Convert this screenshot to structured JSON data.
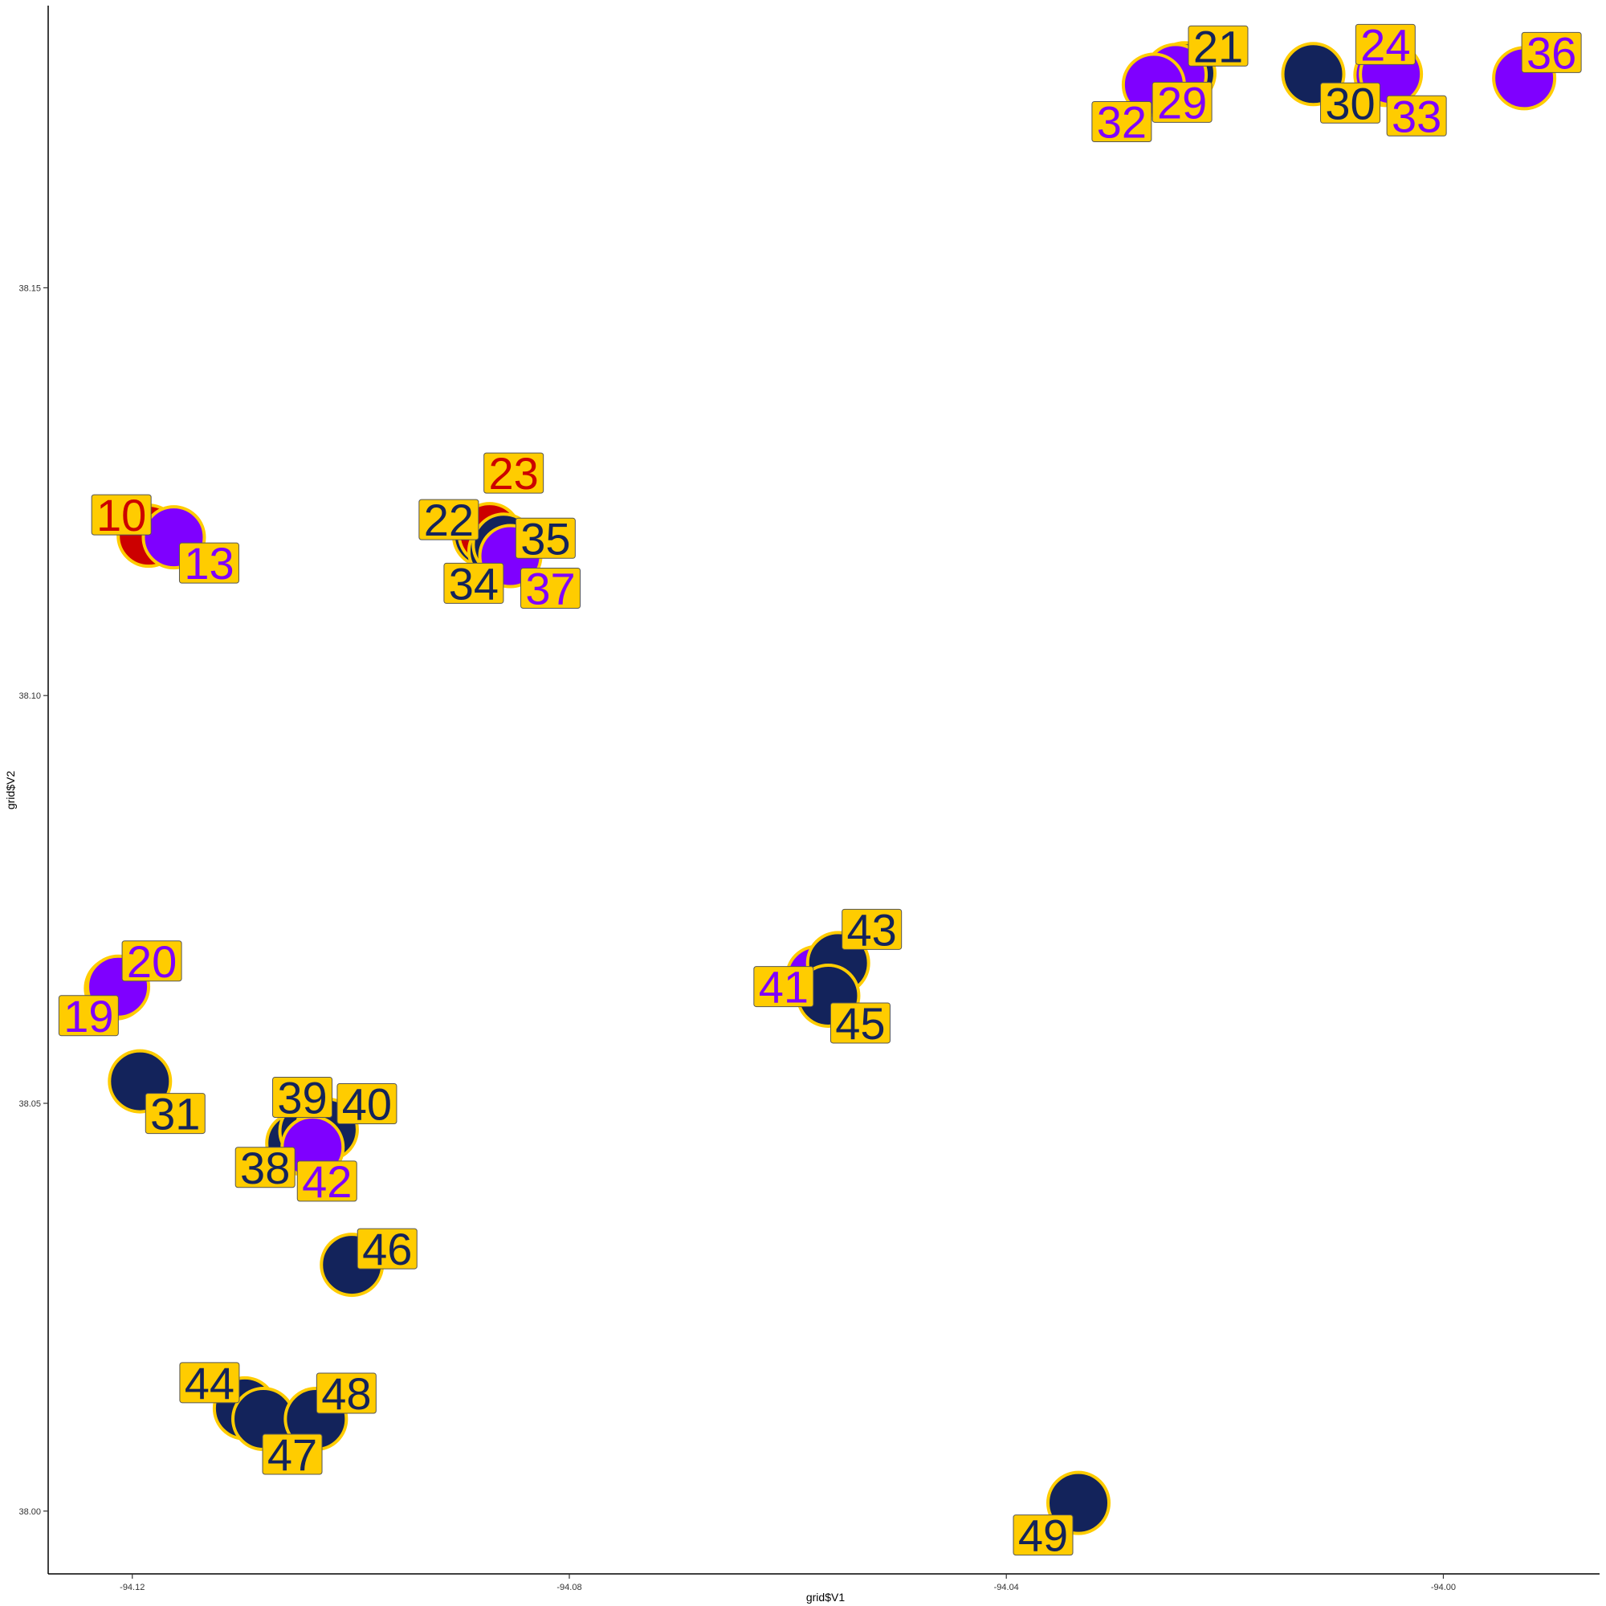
{
  "chart_data": {
    "type": "scatter",
    "title": "",
    "xlabel": "grid$V1",
    "ylabel": "grid$V2",
    "xlim": [
      -94.1277,
      -93.9857
    ],
    "ylim": [
      37.9923,
      38.1846
    ],
    "x_ticks": [
      -94.12,
      -94.08,
      -94.04,
      -94.0
    ],
    "x_tick_labels": [
      "-94.12",
      "-94.08",
      "-94.04",
      "-94.00"
    ],
    "y_ticks": [
      38.0,
      38.05,
      38.1,
      38.15
    ],
    "y_tick_labels": [
      "38.00",
      "38.05",
      "38.10",
      "38.15"
    ],
    "grid": false,
    "legend": "none",
    "colors": {
      "navy": "#13235b",
      "purple": "#7f00ff",
      "red": "#cc0000",
      "outline": "#ffcc00",
      "label_fill": "#ffcc00"
    },
    "points": [
      {
        "id": "10",
        "x": -94.1185,
        "y": 38.1196,
        "color": "red",
        "label_dx": -34,
        "label_dy": -26
      },
      {
        "id": "13",
        "x": -94.1162,
        "y": 38.1194,
        "color": "purple",
        "label_dx": 44,
        "label_dy": 32
      },
      {
        "id": "19",
        "x": -94.1215,
        "y": 38.0641,
        "color": "purple",
        "label_dx": -34,
        "label_dy": 34
      },
      {
        "id": "20",
        "x": -94.1213,
        "y": 38.0643,
        "color": "purple",
        "label_dx": 42,
        "label_dy": -32
      },
      {
        "id": "21",
        "x": -94.0237,
        "y": 38.1763,
        "color": "navy",
        "label_dx": 42,
        "label_dy": -34
      },
      {
        "id": "22",
        "x": -94.0878,
        "y": 38.1196,
        "color": "navy",
        "label_dx": -44,
        "label_dy": -20
      },
      {
        "id": "23",
        "x": -94.0873,
        "y": 38.1198,
        "color": "red",
        "label_dx": 30,
        "label_dy": -76
      },
      {
        "id": "24",
        "x": -94.0053,
        "y": 38.1761,
        "color": "purple",
        "label_dx": 0,
        "label_dy": -38
      },
      {
        "id": "29",
        "x": -94.0245,
        "y": 38.1761,
        "color": "purple",
        "label_dx": 8,
        "label_dy": 34
      },
      {
        "id": "30",
        "x": -94.0119,
        "y": 38.1762,
        "color": "navy",
        "label_dx": 46,
        "label_dy": 36
      },
      {
        "id": "31",
        "x": -94.1193,
        "y": 38.0527,
        "color": "navy",
        "label_dx": 44,
        "label_dy": 40
      },
      {
        "id": "32",
        "x": -94.0265,
        "y": 38.1749,
        "color": "purple",
        "label_dx": -40,
        "label_dy": 46
      },
      {
        "id": "33",
        "x": -94.0048,
        "y": 38.1762,
        "color": "purple",
        "label_dx": 32,
        "label_dy": 52
      },
      {
        "id": "34",
        "x": -94.0864,
        "y": 38.1177,
        "color": "navy",
        "label_dx": -32,
        "label_dy": 40
      },
      {
        "id": "35",
        "x": -94.086,
        "y": 38.1185,
        "color": "navy",
        "label_dx": 52,
        "label_dy": -8
      },
      {
        "id": "36",
        "x": -93.9926,
        "y": 38.1757,
        "color": "purple",
        "label_dx": 34,
        "label_dy": -32
      },
      {
        "id": "37",
        "x": -94.0854,
        "y": 38.1171,
        "color": "purple",
        "label_dx": 50,
        "label_dy": 40
      },
      {
        "id": "38",
        "x": -94.1049,
        "y": 38.0451,
        "color": "navy",
        "label_dx": -40,
        "label_dy": 30
      },
      {
        "id": "39",
        "x": -94.1037,
        "y": 38.0466,
        "color": "navy",
        "label_dx": -10,
        "label_dy": -42
      },
      {
        "id": "40",
        "x": -94.1022,
        "y": 38.0468,
        "color": "navy",
        "label_dx": 50,
        "label_dy": -32
      },
      {
        "id": "41",
        "x": -94.0573,
        "y": 38.0655,
        "color": "purple",
        "label_dx": -42,
        "label_dy": 12
      },
      {
        "id": "42",
        "x": -94.1035,
        "y": 38.0446,
        "color": "purple",
        "label_dx": 18,
        "label_dy": 42
      },
      {
        "id": "43",
        "x": -94.0554,
        "y": 38.0672,
        "color": "navy",
        "label_dx": 42,
        "label_dy": -42
      },
      {
        "id": "44",
        "x": -94.1097,
        "y": 38.0126,
        "color": "navy",
        "label_dx": -44,
        "label_dy": -32
      },
      {
        "id": "45",
        "x": -94.0563,
        "y": 38.0632,
        "color": "navy",
        "label_dx": 40,
        "label_dy": 34
      },
      {
        "id": "46",
        "x": -94.0999,
        "y": 38.0302,
        "color": "navy",
        "label_dx": 44,
        "label_dy": -20
      },
      {
        "id": "47",
        "x": -94.108,
        "y": 38.0113,
        "color": "navy",
        "label_dx": 36,
        "label_dy": 44
      },
      {
        "id": "48",
        "x": -94.1032,
        "y": 38.0113,
        "color": "navy",
        "label_dx": 38,
        "label_dy": -32
      },
      {
        "id": "49",
        "x": -94.0334,
        "y": 38.001,
        "color": "navy",
        "label_dx": -44,
        "label_dy": 40
      }
    ]
  }
}
